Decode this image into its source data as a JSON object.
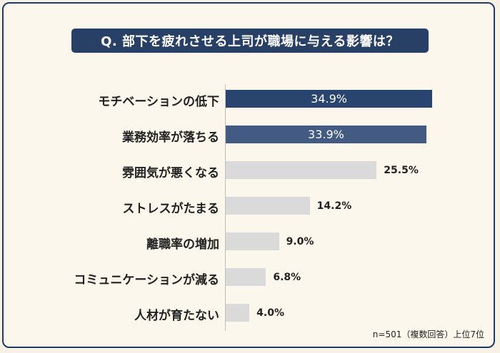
{
  "title": "Q. 部下を疲れさせる上司が職場に与える影響は？",
  "note": "n=501（複数回答）上位7位",
  "chart_data": {
    "type": "bar",
    "orientation": "horizontal",
    "title": "Q. 部下を疲れさせる上司が職場に与える影響は？",
    "unit": "%",
    "categories": [
      "モチベーションの低下",
      "業務効率が落ちる",
      "雰囲気が悪くなる",
      "ストレスがたまる",
      "離職率の増加",
      "コミュニケーションが減る",
      "人材が育たない"
    ],
    "values": [
      34.9,
      33.9,
      25.5,
      14.2,
      9.0,
      6.8,
      4.0
    ],
    "value_labels": [
      "34.9%",
      "33.9%",
      "25.5%",
      "14.2%",
      "9.0%",
      "6.8%",
      "4.0%"
    ],
    "colors": [
      "#2a4470",
      "#435b83",
      "#dadada",
      "#dadada",
      "#dadada",
      "#dadada",
      "#dadada"
    ],
    "label_inside": [
      true,
      true,
      false,
      false,
      false,
      false,
      false
    ],
    "xlim": [
      0,
      35
    ]
  }
}
